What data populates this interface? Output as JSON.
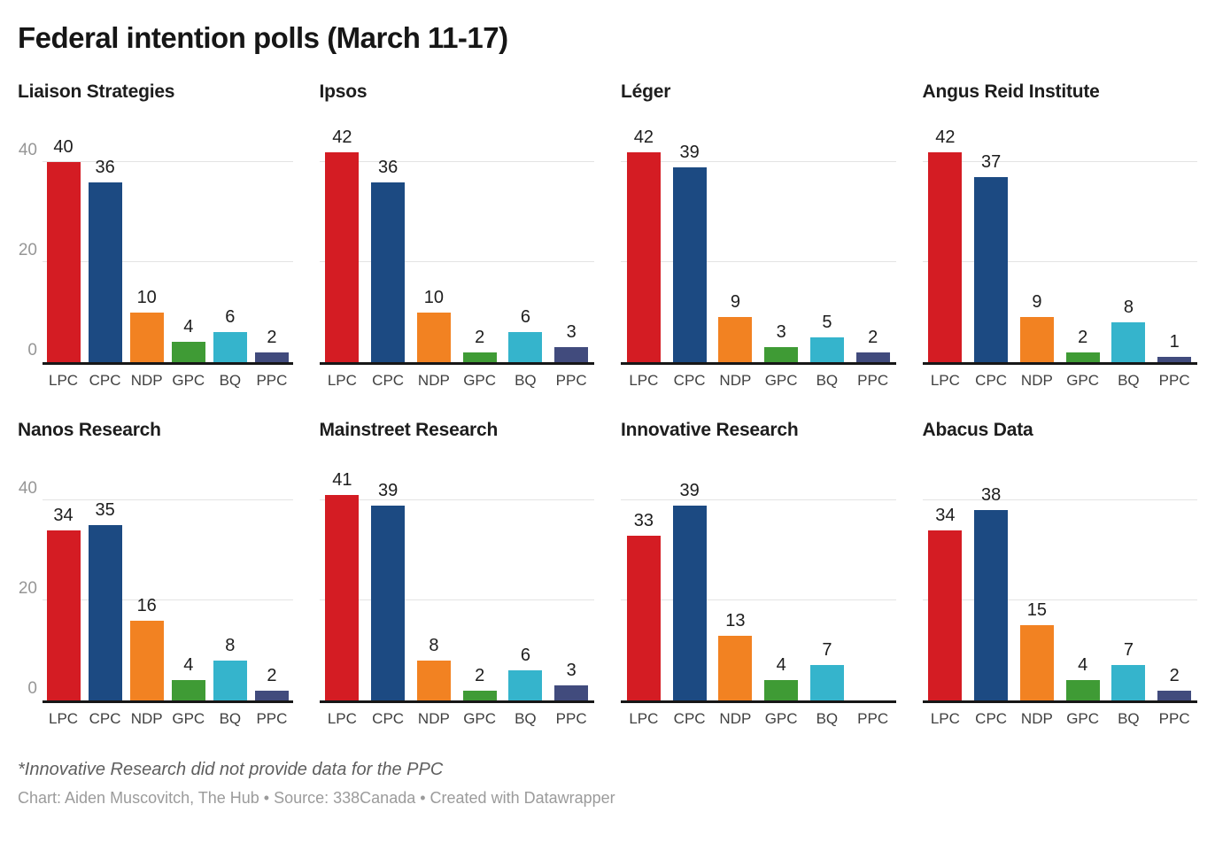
{
  "title": "Federal intention polls (March 11-17)",
  "footnote": "*Innovative Research did not provide data for the PPC",
  "byline": "Chart: Aiden Muscovitch, The Hub • Source: 338Canada • Created with Datawrapper",
  "party_colors": {
    "LPC": "#d41c23",
    "CPC": "#1c4a82",
    "NDP": "#f28222",
    "GPC": "#3f9b35",
    "BQ": "#35b4cc",
    "PPC": "#414b7d"
  },
  "chart_data": {
    "type": "bar",
    "title": "Federal intention polls (March 11-17)",
    "categories": [
      "LPC",
      "CPC",
      "NDP",
      "GPC",
      "BQ",
      "PPC"
    ],
    "ylabel": "",
    "xlabel": "",
    "ylim": [
      0,
      49
    ],
    "y_ticks": [
      0,
      20,
      40
    ],
    "grid": true,
    "legend": false,
    "panels": [
      {
        "pollster": "Liaison Strategies",
        "show_y_axis": true,
        "values": [
          40,
          36,
          10,
          4,
          6,
          2
        ]
      },
      {
        "pollster": "Ipsos",
        "show_y_axis": false,
        "values": [
          42,
          36,
          10,
          2,
          6,
          3
        ]
      },
      {
        "pollster": "Léger",
        "show_y_axis": false,
        "values": [
          42,
          39,
          9,
          3,
          5,
          2
        ]
      },
      {
        "pollster": "Angus Reid Institute",
        "show_y_axis": false,
        "values": [
          42,
          37,
          9,
          2,
          8,
          1
        ]
      },
      {
        "pollster": "Nanos Research",
        "show_y_axis": true,
        "values": [
          34,
          35,
          16,
          4,
          8,
          2
        ]
      },
      {
        "pollster": "Mainstreet Research",
        "show_y_axis": false,
        "values": [
          41,
          39,
          8,
          2,
          6,
          3
        ]
      },
      {
        "pollster": "Innovative Research",
        "show_y_axis": false,
        "values": [
          33,
          39,
          13,
          4,
          7,
          null
        ]
      },
      {
        "pollster": "Abacus Data",
        "show_y_axis": false,
        "values": [
          34,
          38,
          15,
          4,
          7,
          2
        ]
      }
    ]
  }
}
